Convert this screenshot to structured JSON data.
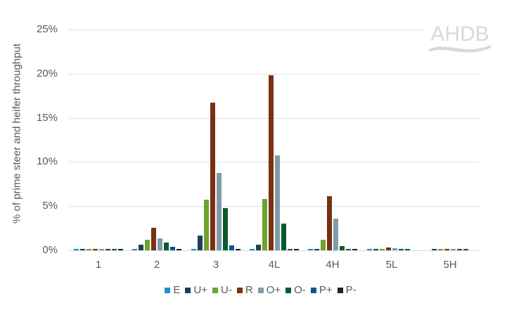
{
  "logo": {
    "text": "AHDB"
  },
  "chart_data": {
    "type": "bar",
    "title": "",
    "xlabel": "",
    "ylabel": "% of prime steer and heifer throughput",
    "ylim": [
      0,
      25
    ],
    "yticks": [
      "0%",
      "5%",
      "10%",
      "15%",
      "20%",
      "25%"
    ],
    "grid": true,
    "legend_position": "bottom",
    "categories": [
      "1",
      "2",
      "3",
      "4L",
      "4H",
      "5L",
      "5H"
    ],
    "series": [
      {
        "name": "E",
        "color": "#1a8fd6",
        "values": [
          0.1,
          0.1,
          0.1,
          0.1,
          0.1,
          0.1,
          0.0
        ]
      },
      {
        "name": "U+",
        "color": "#1f4052",
        "values": [
          0.1,
          0.65,
          1.7,
          0.65,
          0.1,
          0.1,
          0.1
        ]
      },
      {
        "name": "U-",
        "color": "#6fa22f",
        "values": [
          0.1,
          1.2,
          5.75,
          5.8,
          1.2,
          0.1,
          0.1
        ]
      },
      {
        "name": "R",
        "color": "#7a3012",
        "values": [
          0.1,
          2.55,
          16.7,
          19.8,
          6.1,
          0.3,
          0.1
        ]
      },
      {
        "name": "O+",
        "color": "#7f9ba8",
        "values": [
          0.1,
          1.35,
          8.75,
          10.75,
          3.6,
          0.25,
          0.1
        ]
      },
      {
        "name": "O-",
        "color": "#0b5a2e",
        "values": [
          0.1,
          0.9,
          4.8,
          3.0,
          0.5,
          0.1,
          0.1
        ]
      },
      {
        "name": "P+",
        "color": "#0a5580",
        "values": [
          0.1,
          0.4,
          0.55,
          0.1,
          0.1,
          0.1,
          0.1
        ]
      },
      {
        "name": "P-",
        "color": "#162630",
        "values": [
          0.1,
          0.1,
          0.1,
          0.1,
          0.1,
          0.0,
          0.0
        ]
      }
    ]
  }
}
